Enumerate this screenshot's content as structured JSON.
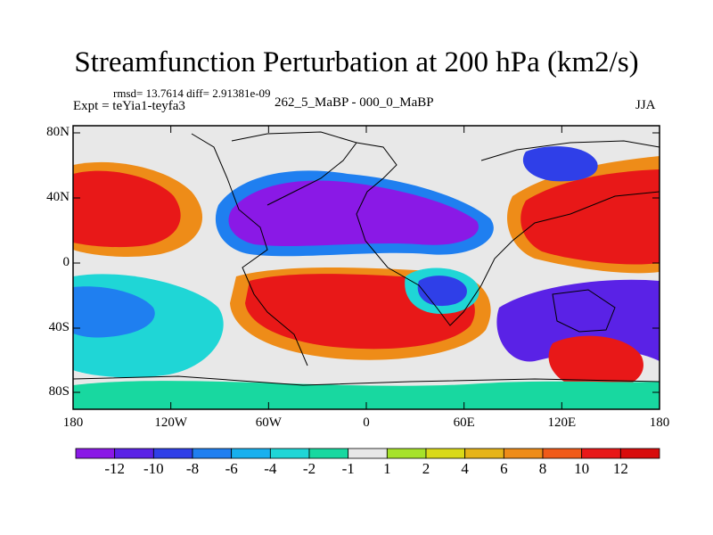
{
  "title": "Streamfunction Perturbation at 200 hPa (km2/s)",
  "stats": "rmsd= 13.7614 diff= 2.91381e-09",
  "expt": "Expt = teYia1-teyfa3",
  "experiment_label": "262_5_MaBP - 000_0_MaBP",
  "season": "JJA",
  "lat_labels": [
    "80N",
    "40N",
    "0",
    "40S",
    "80S"
  ],
  "lon_labels": [
    "180",
    "120W",
    "60W",
    "0",
    "60E",
    "120E",
    "180"
  ],
  "colorbar": {
    "labels": [
      "-12",
      "-10",
      "-8",
      "-6",
      "-4",
      "-2",
      "-1",
      "1",
      "2",
      "4",
      "6",
      "8",
      "10",
      "12"
    ],
    "colors": [
      "#8a19e6",
      "#5a22e6",
      "#2f3fe8",
      "#1f7ff0",
      "#18b0ee",
      "#1fd6d6",
      "#18d8a0",
      "#e8e8e8",
      "#a6e22a",
      "#dada18",
      "#e6b418",
      "#ee8c18",
      "#f05a18",
      "#e81818",
      "#d80c0c"
    ]
  }
}
